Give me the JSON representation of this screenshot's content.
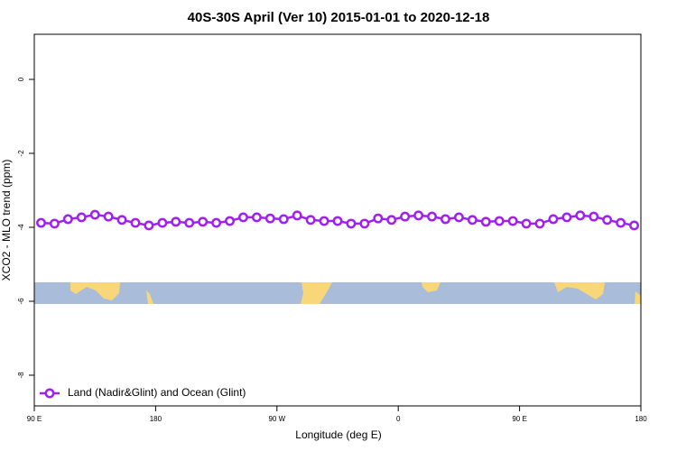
{
  "chart_data": {
    "type": "line",
    "title": "40S-30S April (Ver 10)   2015-01-01 to 2020-12-18",
    "x_label": "Longitude (deg E)",
    "y_label": "XCO2 - MLO trend (ppm)",
    "xlim": [
      90,
      540
    ],
    "xticks": [
      {
        "value": 90,
        "label": "90 E"
      },
      {
        "value": 180,
        "label": "180"
      },
      {
        "value": 270,
        "label": "90 W"
      },
      {
        "value": 360,
        "label": "0"
      },
      {
        "value": 450,
        "label": "90 E"
      },
      {
        "value": 540,
        "label": "180"
      }
    ],
    "ylim": [
      -8.83,
      1.22
    ],
    "yticks": [
      0,
      -2,
      -4,
      -6,
      -8
    ],
    "legend": "bottom-left",
    "x": [
      95,
      105,
      115,
      125,
      135,
      145,
      155,
      165,
      175,
      185,
      195,
      205,
      215,
      225,
      235,
      245,
      255,
      265,
      275,
      285,
      295,
      305,
      315,
      325,
      335,
      345,
      355,
      365,
      375,
      385,
      395,
      405,
      415,
      425,
      435,
      445,
      455,
      465,
      475,
      485,
      495,
      505,
      515,
      525,
      535
    ],
    "series": [
      {
        "name": "Land (Nadir&Glint) and Ocean (Glint)",
        "color": "#a020f0",
        "values": [
          -3.88,
          -3.9,
          -3.78,
          -3.73,
          -3.66,
          -3.71,
          -3.8,
          -3.88,
          -3.95,
          -3.88,
          -3.85,
          -3.88,
          -3.85,
          -3.88,
          -3.83,
          -3.73,
          -3.73,
          -3.76,
          -3.78,
          -3.68,
          -3.8,
          -3.83,
          -3.83,
          -3.9,
          -3.9,
          -3.76,
          -3.8,
          -3.71,
          -3.68,
          -3.71,
          -3.78,
          -3.73,
          -3.8,
          -3.85,
          -3.83,
          -3.83,
          -3.9,
          -3.9,
          -3.78,
          -3.73,
          -3.68,
          -3.71,
          -3.8,
          -3.88,
          -3.95
        ]
      }
    ]
  }
}
